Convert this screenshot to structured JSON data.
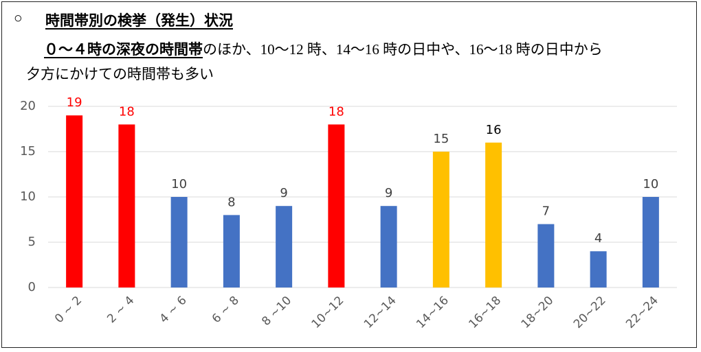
{
  "header": {
    "bullet": "○",
    "title": "時間帯別の検挙（発生）状況",
    "emphasis": "０～４時の深夜の時間帯",
    "line2": "のほか、10～12 時、14～16 時の日中や、16～18 時の日中から",
    "line3": "夕方にかけての時間帯も多い"
  },
  "chart_data": {
    "type": "bar",
    "categories": [
      "0 ~ 2",
      "2 ~ 4",
      "4 ~ 6",
      "6 ~ 8",
      "8 ~10",
      "10~12",
      "12~14",
      "14~16",
      "16~18",
      "18~20",
      "20~22",
      "22~24"
    ],
    "values": [
      19,
      18,
      10,
      8,
      9,
      18,
      9,
      15,
      16,
      7,
      4,
      10
    ],
    "colors": [
      "#ff0000",
      "#ff0000",
      "#4472c4",
      "#4472c4",
      "#4472c4",
      "#ff0000",
      "#4472c4",
      "#ffc000",
      "#ffc000",
      "#4472c4",
      "#4472c4",
      "#4472c4"
    ],
    "label_colors": [
      "#ff0000",
      "#ff0000",
      "#404040",
      "#404040",
      "#404040",
      "#ff0000",
      "#404040",
      "#404040",
      "#000000",
      "#404040",
      "#404040",
      "#404040"
    ],
    "ylim": [
      0,
      20
    ],
    "yticks": [
      0,
      5,
      10,
      15,
      20
    ],
    "grid": true
  }
}
